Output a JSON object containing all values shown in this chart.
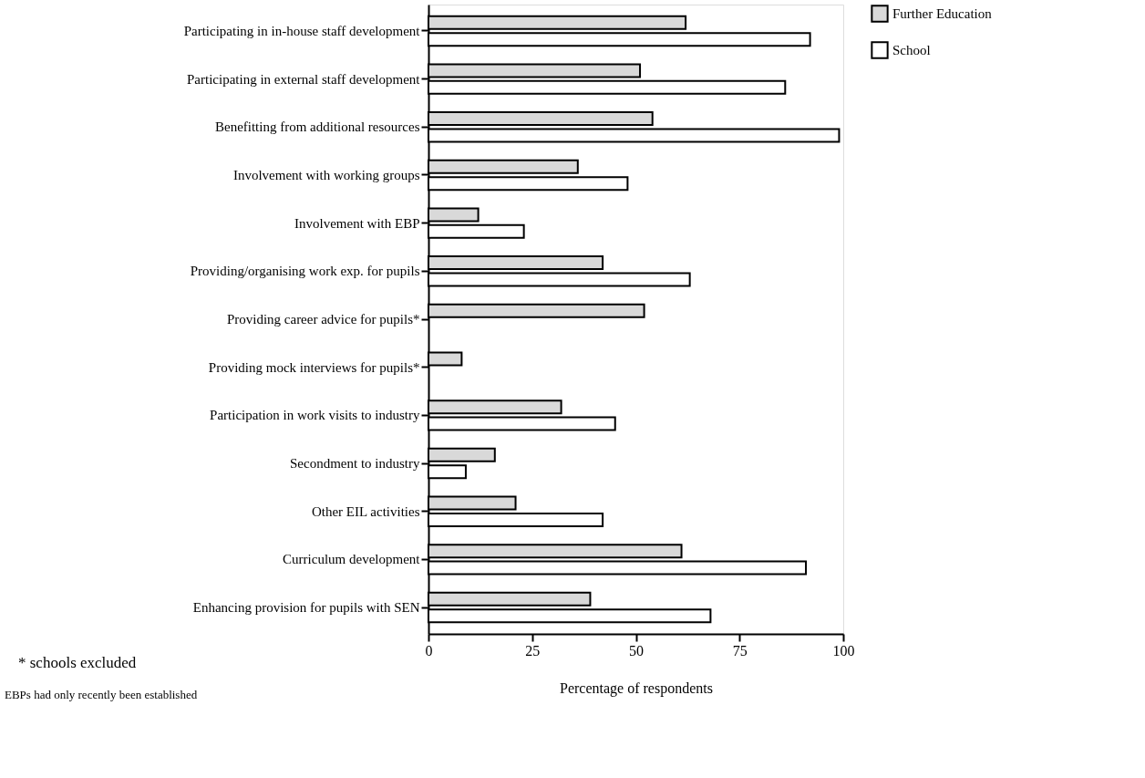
{
  "chart_data": {
    "type": "bar",
    "orientation": "horizontal",
    "xlabel": "Percentage of respondents",
    "categories": [
      "Participating in in-house staff development",
      "Participating in external staff development",
      "Benefitting from additional resources",
      "Involvement with working groups",
      "Involvement with EBP",
      "Providing/organising work exp. for pupils",
      "Providing career advice for pupils*",
      "Providing mock interviews for pupils*",
      "Participation in work visits to industry",
      "Secondment to industry",
      "Other EIL activities",
      "Curriculum development",
      "Enhancing provision for pupils with SEN"
    ],
    "series": [
      {
        "name": "Further Education",
        "color": "#d9d9d9",
        "values": [
          62,
          51,
          54,
          36,
          12,
          42,
          52,
          8,
          32,
          16,
          21,
          61,
          39
        ]
      },
      {
        "name": "School",
        "color": "#ffffff",
        "values": [
          92,
          86,
          99,
          48,
          23,
          63,
          null,
          null,
          45,
          9,
          42,
          91,
          68
        ]
      }
    ],
    "xlim": [
      0,
      100
    ],
    "xticks": [
      0,
      25,
      50,
      75,
      100
    ],
    "grid": false,
    "legend": "top right",
    "annotations": [
      "* schools excluded",
      "EBPs had only recently been established"
    ]
  }
}
